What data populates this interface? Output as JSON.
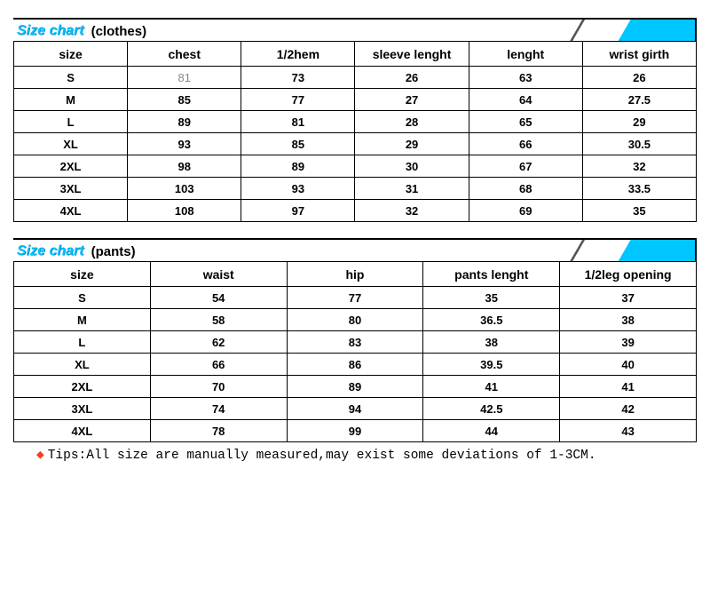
{
  "table1": {
    "title": "Size chart",
    "subtitle": "(clothes)",
    "accent_color": "#00c6ff",
    "columns": [
      "size",
      "chest",
      "1/2hem",
      "sleeve lenght",
      "lenght",
      "wrist girth"
    ],
    "rows": [
      [
        "S",
        "81",
        "73",
        "26",
        "63",
        "26"
      ],
      [
        "M",
        "85",
        "77",
        "27",
        "64",
        "27.5"
      ],
      [
        "L",
        "89",
        "81",
        "28",
        "65",
        "29"
      ],
      [
        "XL",
        "93",
        "85",
        "29",
        "66",
        "30.5"
      ],
      [
        "2XL",
        "98",
        "89",
        "30",
        "67",
        "32"
      ],
      [
        "3XL",
        "103",
        "93",
        "31",
        "68",
        "33.5"
      ],
      [
        "4XL",
        "108",
        "97",
        "32",
        "69",
        "35"
      ]
    ]
  },
  "table2": {
    "title": "Size chart",
    "subtitle": "(pants)",
    "accent_color": "#00c6ff",
    "columns": [
      "size",
      "waist",
      "hip",
      "pants lenght",
      "1/2leg opening"
    ],
    "rows": [
      [
        "S",
        "54",
        "77",
        "35",
        "37"
      ],
      [
        "M",
        "58",
        "80",
        "36.5",
        "38"
      ],
      [
        "L",
        "62",
        "83",
        "38",
        "39"
      ],
      [
        "XL",
        "66",
        "86",
        "39.5",
        "40"
      ],
      [
        "2XL",
        "70",
        "89",
        "41",
        "41"
      ],
      [
        "3XL",
        "74",
        "94",
        "42.5",
        "42"
      ],
      [
        "4XL",
        "78",
        "99",
        "44",
        "43"
      ]
    ]
  },
  "tips": {
    "bullet": "◆",
    "text": "Tips:All size are manually measured,may exist some deviations of 1-3CM."
  }
}
